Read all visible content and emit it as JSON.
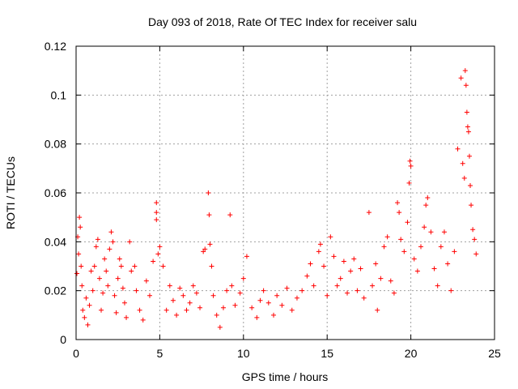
{
  "chart_data": {
    "type": "scatter",
    "title": "Day 093 of 2018, Rate Of TEC Index for receiver salu",
    "xlabel": "GPS time / hours",
    "ylabel": "ROTI / TECUs",
    "xlim": [
      0,
      25
    ],
    "ylim": [
      0,
      0.12
    ],
    "x_ticks": [
      0,
      5,
      10,
      15,
      20,
      25
    ],
    "x_tick_labels": [
      "0",
      "5",
      "10",
      "15",
      "20",
      "25"
    ],
    "y_ticks": [
      0,
      0.02,
      0.04,
      0.06,
      0.08,
      0.1,
      0.12
    ],
    "y_tick_labels": [
      "0",
      "0.02",
      "0.04",
      "0.06",
      "0.08",
      "0.1",
      "0.12"
    ],
    "grid": true,
    "marker": "plus",
    "color": "#ff0000",
    "series": [
      {
        "name": "ROTI",
        "points": [
          [
            0.05,
            0.027
          ],
          [
            0.1,
            0.042
          ],
          [
            0.15,
            0.035
          ],
          [
            0.2,
            0.05
          ],
          [
            0.25,
            0.046
          ],
          [
            0.3,
            0.03
          ],
          [
            0.35,
            0.022
          ],
          [
            0.4,
            0.012
          ],
          [
            0.5,
            0.009
          ],
          [
            0.6,
            0.017
          ],
          [
            0.7,
            0.006
          ],
          [
            0.8,
            0.014
          ],
          [
            0.9,
            0.028
          ],
          [
            1.0,
            0.02
          ],
          [
            1.1,
            0.03
          ],
          [
            1.2,
            0.038
          ],
          [
            1.3,
            0.041
          ],
          [
            1.4,
            0.025
          ],
          [
            1.5,
            0.012
          ],
          [
            1.6,
            0.019
          ],
          [
            1.7,
            0.033
          ],
          [
            1.8,
            0.028
          ],
          [
            1.9,
            0.022
          ],
          [
            2.0,
            0.037
          ],
          [
            2.1,
            0.044
          ],
          [
            2.2,
            0.04
          ],
          [
            2.3,
            0.018
          ],
          [
            2.4,
            0.011
          ],
          [
            2.5,
            0.025
          ],
          [
            2.6,
            0.033
          ],
          [
            2.7,
            0.03
          ],
          [
            2.8,
            0.021
          ],
          [
            2.9,
            0.015
          ],
          [
            3.0,
            0.009
          ],
          [
            3.2,
            0.04
          ],
          [
            3.3,
            0.028
          ],
          [
            3.5,
            0.03
          ],
          [
            3.6,
            0.02
          ],
          [
            3.8,
            0.012
          ],
          [
            4.0,
            0.008
          ],
          [
            4.2,
            0.024
          ],
          [
            4.4,
            0.018
          ],
          [
            4.6,
            0.032
          ],
          [
            4.8,
            0.056
          ],
          [
            4.8,
            0.052
          ],
          [
            4.8,
            0.049
          ],
          [
            4.9,
            0.035
          ],
          [
            5.0,
            0.038
          ],
          [
            5.2,
            0.03
          ],
          [
            5.4,
            0.012
          ],
          [
            5.6,
            0.022
          ],
          [
            5.8,
            0.016
          ],
          [
            6.0,
            0.01
          ],
          [
            6.2,
            0.021
          ],
          [
            6.4,
            0.018
          ],
          [
            6.6,
            0.012
          ],
          [
            6.8,
            0.015
          ],
          [
            7.0,
            0.022
          ],
          [
            7.2,
            0.019
          ],
          [
            7.4,
            0.013
          ],
          [
            7.6,
            0.036
          ],
          [
            7.7,
            0.037
          ],
          [
            7.9,
            0.06
          ],
          [
            7.95,
            0.051
          ],
          [
            8.0,
            0.039
          ],
          [
            8.1,
            0.03
          ],
          [
            8.2,
            0.018
          ],
          [
            8.4,
            0.01
          ],
          [
            8.6,
            0.005
          ],
          [
            8.8,
            0.013
          ],
          [
            9.0,
            0.02
          ],
          [
            9.2,
            0.051
          ],
          [
            9.3,
            0.022
          ],
          [
            9.5,
            0.014
          ],
          [
            9.8,
            0.019
          ],
          [
            10.0,
            0.025
          ],
          [
            10.2,
            0.034
          ],
          [
            10.5,
            0.013
          ],
          [
            10.8,
            0.009
          ],
          [
            11.0,
            0.016
          ],
          [
            11.2,
            0.02
          ],
          [
            11.5,
            0.015
          ],
          [
            11.8,
            0.01
          ],
          [
            12.0,
            0.018
          ],
          [
            12.3,
            0.014
          ],
          [
            12.6,
            0.021
          ],
          [
            12.9,
            0.012
          ],
          [
            13.2,
            0.017
          ],
          [
            13.5,
            0.02
          ],
          [
            13.8,
            0.026
          ],
          [
            14.0,
            0.031
          ],
          [
            14.2,
            0.022
          ],
          [
            14.5,
            0.036
          ],
          [
            14.6,
            0.039
          ],
          [
            14.8,
            0.03
          ],
          [
            15.0,
            0.018
          ],
          [
            15.2,
            0.042
          ],
          [
            15.4,
            0.034
          ],
          [
            15.6,
            0.022
          ],
          [
            15.8,
            0.025
          ],
          [
            16.0,
            0.032
          ],
          [
            16.2,
            0.019
          ],
          [
            16.4,
            0.028
          ],
          [
            16.6,
            0.033
          ],
          [
            16.8,
            0.02
          ],
          [
            17.0,
            0.029
          ],
          [
            17.2,
            0.017
          ],
          [
            17.5,
            0.052
          ],
          [
            17.7,
            0.022
          ],
          [
            17.9,
            0.031
          ],
          [
            18.0,
            0.012
          ],
          [
            18.2,
            0.025
          ],
          [
            18.4,
            0.038
          ],
          [
            18.6,
            0.042
          ],
          [
            18.8,
            0.024
          ],
          [
            19.0,
            0.019
          ],
          [
            19.2,
            0.056
          ],
          [
            19.3,
            0.052
          ],
          [
            19.4,
            0.041
          ],
          [
            19.6,
            0.036
          ],
          [
            19.8,
            0.048
          ],
          [
            19.9,
            0.064
          ],
          [
            19.95,
            0.073
          ],
          [
            20.0,
            0.071
          ],
          [
            20.2,
            0.033
          ],
          [
            20.4,
            0.028
          ],
          [
            20.6,
            0.038
          ],
          [
            20.8,
            0.046
          ],
          [
            20.9,
            0.055
          ],
          [
            21.0,
            0.058
          ],
          [
            21.2,
            0.044
          ],
          [
            21.4,
            0.029
          ],
          [
            21.6,
            0.022
          ],
          [
            21.8,
            0.038
          ],
          [
            22.0,
            0.044
          ],
          [
            22.2,
            0.031
          ],
          [
            22.4,
            0.02
          ],
          [
            22.6,
            0.036
          ],
          [
            22.8,
            0.078
          ],
          [
            23.0,
            0.107
          ],
          [
            23.1,
            0.072
          ],
          [
            23.2,
            0.066
          ],
          [
            23.25,
            0.11
          ],
          [
            23.3,
            0.104
          ],
          [
            23.35,
            0.093
          ],
          [
            23.4,
            0.087
          ],
          [
            23.45,
            0.085
          ],
          [
            23.5,
            0.075
          ],
          [
            23.55,
            0.063
          ],
          [
            23.6,
            0.055
          ],
          [
            23.7,
            0.045
          ],
          [
            23.8,
            0.041
          ],
          [
            23.9,
            0.035
          ]
        ]
      }
    ]
  }
}
